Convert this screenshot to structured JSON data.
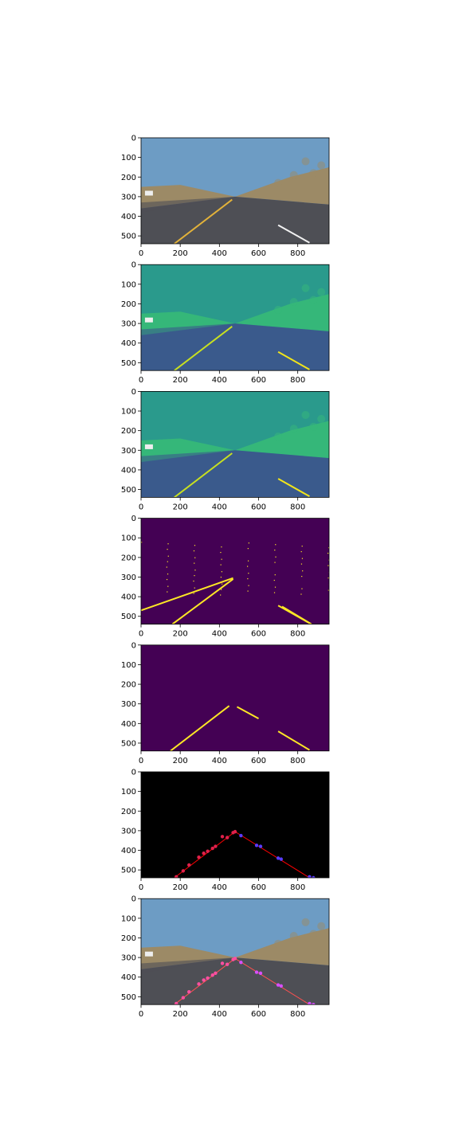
{
  "figure": {
    "background": "#ffffff",
    "axis_color": "#000000"
  },
  "chart_data": [
    {
      "type": "heatmap",
      "content": "original road photo (RGB)",
      "colors": {
        "sky": "#6d9cc4",
        "road": "#4e4f55",
        "hills": "#9c8a66",
        "lane_left": "#e2b23a",
        "lane_right": "#f2f2f2"
      },
      "xlim": [
        0,
        960
      ],
      "ylim": [
        540,
        0
      ],
      "xticks": [
        0,
        200,
        400,
        600,
        800
      ],
      "yticks": [
        0,
        100,
        200,
        300,
        400,
        500
      ],
      "lane_lines": [
        {
          "x1": 170,
          "y1": 540,
          "x2": 465,
          "y2": 315,
          "color": "#e2b23a"
        },
        {
          "x1": 700,
          "y1": 445,
          "x2": 860,
          "y2": 535,
          "color": "#f2f2f2"
        }
      ]
    },
    {
      "type": "heatmap",
      "content": "grayscale (viridis colormap)",
      "colors": {
        "sky": "#2a9a8c",
        "road": "#3a5a8c",
        "hills": "#35b779",
        "lane": "#c8e020"
      },
      "xlim": [
        0,
        960
      ],
      "ylim": [
        540,
        0
      ],
      "xticks": [
        0,
        200,
        400,
        600,
        800
      ],
      "yticks": [
        0,
        100,
        200,
        300,
        400,
        500
      ],
      "lane_lines": [
        {
          "x1": 170,
          "y1": 540,
          "x2": 465,
          "y2": 315,
          "color": "#c8e020"
        },
        {
          "x1": 700,
          "y1": 445,
          "x2": 860,
          "y2": 535,
          "color": "#f2e51a"
        }
      ]
    },
    {
      "type": "heatmap",
      "content": "gaussian blurred grayscale (viridis colormap)",
      "colors": {
        "sky": "#2a9a8c",
        "road": "#3a5a8c",
        "hills": "#35b779",
        "lane": "#c8e020"
      },
      "xlim": [
        0,
        960
      ],
      "ylim": [
        540,
        0
      ],
      "xticks": [
        0,
        200,
        400,
        600,
        800
      ],
      "yticks": [
        0,
        100,
        200,
        300,
        400,
        500
      ],
      "lane_lines": [
        {
          "x1": 170,
          "y1": 540,
          "x2": 465,
          "y2": 315,
          "color": "#c8e020"
        },
        {
          "x1": 700,
          "y1": 445,
          "x2": 860,
          "y2": 535,
          "color": "#f2e51a"
        }
      ]
    },
    {
      "type": "heatmap",
      "content": "canny edges",
      "colors": {
        "background": "#440154",
        "edge": "#fde725"
      },
      "xlim": [
        0,
        960
      ],
      "ylim": [
        540,
        0
      ],
      "xticks": [
        0,
        200,
        400,
        600,
        800
      ],
      "yticks": [
        0,
        100,
        200,
        300,
        400,
        500
      ],
      "lane_lines": [
        {
          "x1": 0,
          "y1": 470,
          "x2": 470,
          "y2": 305,
          "color": "#fde725"
        },
        {
          "x1": 160,
          "y1": 540,
          "x2": 470,
          "y2": 310,
          "color": "#fde725"
        },
        {
          "x1": 700,
          "y1": 445,
          "x2": 860,
          "y2": 535,
          "color": "#fde725"
        },
        {
          "x1": 720,
          "y1": 450,
          "x2": 870,
          "y2": 540,
          "color": "#fde725"
        }
      ]
    },
    {
      "type": "heatmap",
      "content": "masked edges (region of interest)",
      "colors": {
        "background": "#440154",
        "edge": "#fde725"
      },
      "xlim": [
        0,
        960
      ],
      "ylim": [
        540,
        0
      ],
      "xticks": [
        0,
        200,
        400,
        600,
        800
      ],
      "yticks": [
        0,
        100,
        200,
        300,
        400,
        500
      ],
      "lane_lines": [
        {
          "x1": 150,
          "y1": 540,
          "x2": 450,
          "y2": 310,
          "color": "#fde725"
        },
        {
          "x1": 490,
          "y1": 315,
          "x2": 600,
          "y2": 375,
          "color": "#fde725"
        },
        {
          "x1": 700,
          "y1": 440,
          "x2": 860,
          "y2": 535,
          "color": "#fde725"
        }
      ]
    },
    {
      "type": "scatter",
      "content": "hough lines on black",
      "colors": {
        "background": "#000000",
        "line": "#ff0000",
        "left_points": "#e0204a",
        "right_points": "#5a3cff"
      },
      "xlim": [
        0,
        960
      ],
      "ylim": [
        540,
        0
      ],
      "xticks": [
        0,
        200,
        400,
        600,
        800
      ],
      "yticks": [
        0,
        100,
        200,
        300,
        400,
        500
      ],
      "lane_lines": [
        {
          "x1": 170,
          "y1": 540,
          "x2": 480,
          "y2": 305,
          "color": "#ff0000"
        },
        {
          "x1": 480,
          "y1": 305,
          "x2": 860,
          "y2": 540,
          "color": "#ff0000"
        }
      ],
      "points_left": [
        [
          180,
          535
        ],
        [
          215,
          505
        ],
        [
          245,
          475
        ],
        [
          295,
          435
        ],
        [
          320,
          415
        ],
        [
          340,
          405
        ],
        [
          365,
          390
        ],
        [
          380,
          380
        ],
        [
          415,
          330
        ],
        [
          440,
          335
        ],
        [
          470,
          310
        ],
        [
          480,
          305
        ]
      ],
      "points_right": [
        [
          510,
          325
        ],
        [
          590,
          375
        ],
        [
          610,
          380
        ],
        [
          700,
          440
        ],
        [
          715,
          445
        ],
        [
          860,
          535
        ],
        [
          880,
          540
        ]
      ]
    },
    {
      "type": "scatter",
      "content": "hough lines overlaid on original photo",
      "colors": {
        "sky": "#6d9cc4",
        "road": "#4e4f55",
        "hills": "#9c8a66",
        "line": "#ff4040",
        "left_points": "#ff4fa0",
        "right_points": "#d84fff"
      },
      "xlim": [
        0,
        960
      ],
      "ylim": [
        540,
        0
      ],
      "xticks": [
        0,
        200,
        400,
        600,
        800
      ],
      "yticks": [
        0,
        100,
        200,
        300,
        400,
        500
      ],
      "lane_lines": [
        {
          "x1": 170,
          "y1": 540,
          "x2": 480,
          "y2": 305,
          "color": "#ff5050"
        },
        {
          "x1": 480,
          "y1": 305,
          "x2": 860,
          "y2": 540,
          "color": "#ff5050"
        }
      ],
      "points_left": [
        [
          180,
          535
        ],
        [
          215,
          505
        ],
        [
          245,
          475
        ],
        [
          295,
          435
        ],
        [
          320,
          415
        ],
        [
          340,
          405
        ],
        [
          365,
          390
        ],
        [
          380,
          380
        ],
        [
          415,
          330
        ],
        [
          440,
          335
        ],
        [
          470,
          310
        ],
        [
          480,
          305
        ]
      ],
      "points_right": [
        [
          510,
          325
        ],
        [
          590,
          375
        ],
        [
          610,
          380
        ],
        [
          700,
          440
        ],
        [
          715,
          445
        ],
        [
          860,
          535
        ],
        [
          880,
          540
        ]
      ]
    }
  ]
}
